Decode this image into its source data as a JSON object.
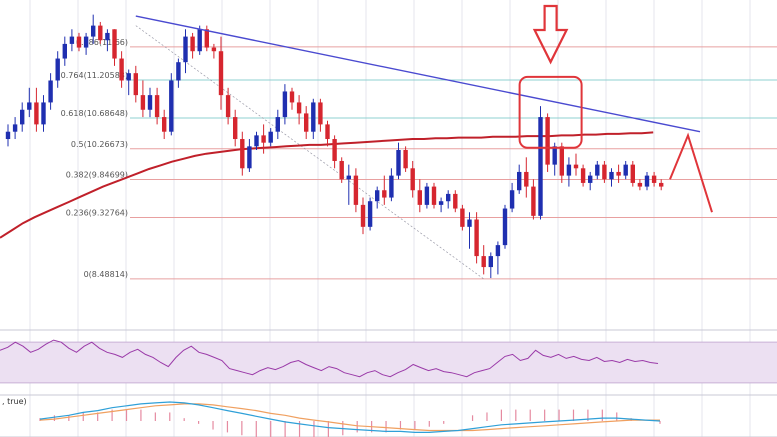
{
  "colors": {
    "bull": "#1f2fb0",
    "bear": "#d6262f",
    "fib_line": "#e8a0a0",
    "fib_line_teal": "#8fd0d0",
    "grid": "#e4e4ec",
    "trendline": "#4a4ad0",
    "ma": "#c0202a",
    "highlight": "#e0353a",
    "rsi": "#9a3aa8",
    "rsi_band": "#ece0f2",
    "macd": "#2fa0d8",
    "signal": "#f0a060",
    "hist": "#e58aa0"
  },
  "chart_data": {
    "type": "candlestick",
    "title": "",
    "ylim": [
      8.2,
      12.3
    ],
    "fib_levels": [
      {
        "label": "0.886(11.66)",
        "value": 11.66
      },
      {
        "label": "0.764(11.20583)",
        "value": 11.20583
      },
      {
        "label": "0.618(10.68648)",
        "value": 10.68648
      },
      {
        "label": "0.5(10.26673)",
        "value": 10.26673
      },
      {
        "label": "0.382(9.84699)",
        "value": 9.84699
      },
      {
        "label": "0.236(9.32764)",
        "value": 9.32764
      },
      {
        "label": "0(8.48814)",
        "value": 8.48814
      }
    ],
    "candles": [
      [
        10.4,
        10.6,
        10.3,
        10.5
      ],
      [
        10.5,
        10.7,
        10.4,
        10.6
      ],
      [
        10.6,
        10.9,
        10.5,
        10.8
      ],
      [
        10.8,
        11.1,
        10.7,
        10.9
      ],
      [
        10.9,
        11.1,
        10.5,
        10.6
      ],
      [
        10.6,
        11.0,
        10.5,
        10.9
      ],
      [
        10.9,
        11.3,
        10.8,
        11.2
      ],
      [
        11.2,
        11.6,
        11.1,
        11.5
      ],
      [
        11.5,
        11.8,
        11.4,
        11.7
      ],
      [
        11.7,
        11.9,
        11.6,
        11.8
      ],
      [
        11.8,
        11.85,
        11.6,
        11.65
      ],
      [
        11.65,
        11.85,
        11.55,
        11.8
      ],
      [
        11.8,
        12.1,
        11.7,
        11.95
      ],
      [
        11.95,
        12.0,
        11.7,
        11.75
      ],
      [
        11.75,
        11.9,
        11.6,
        11.85
      ],
      [
        11.9,
        11.9,
        11.4,
        11.5
      ],
      [
        11.5,
        11.6,
        11.1,
        11.2
      ],
      [
        11.2,
        11.35,
        11.0,
        11.3
      ],
      [
        11.3,
        11.4,
        10.9,
        11.0
      ],
      [
        11.0,
        11.2,
        10.7,
        10.8
      ],
      [
        10.8,
        11.1,
        10.7,
        11.0
      ],
      [
        11.0,
        11.1,
        10.6,
        10.7
      ],
      [
        10.7,
        10.8,
        10.4,
        10.5
      ],
      [
        10.5,
        11.3,
        10.45,
        11.2
      ],
      [
        11.2,
        11.5,
        11.1,
        11.45
      ],
      [
        11.45,
        11.9,
        11.3,
        11.8
      ],
      [
        11.8,
        11.85,
        11.5,
        11.6
      ],
      [
        11.6,
        11.95,
        11.55,
        11.9
      ],
      [
        11.9,
        11.95,
        11.6,
        11.65
      ],
      [
        11.65,
        11.7,
        11.5,
        11.6
      ],
      [
        11.6,
        11.8,
        10.8,
        11.0
      ],
      [
        11.0,
        11.1,
        10.6,
        10.7
      ],
      [
        10.7,
        10.8,
        10.3,
        10.4
      ],
      [
        10.4,
        10.5,
        9.9,
        10.0
      ],
      [
        10.0,
        10.4,
        9.95,
        10.3
      ],
      [
        10.3,
        10.5,
        10.25,
        10.45
      ],
      [
        10.45,
        10.6,
        10.2,
        10.35
      ],
      [
        10.35,
        10.55,
        10.3,
        10.5
      ],
      [
        10.5,
        10.8,
        10.4,
        10.7
      ],
      [
        10.7,
        11.15,
        10.6,
        11.05
      ],
      [
        11.05,
        11.1,
        10.8,
        10.9
      ],
      [
        10.9,
        11.0,
        10.6,
        10.75
      ],
      [
        10.75,
        10.85,
        10.4,
        10.5
      ],
      [
        10.5,
        10.95,
        10.4,
        10.9
      ],
      [
        10.9,
        10.95,
        10.5,
        10.6
      ],
      [
        10.6,
        10.65,
        10.3,
        10.4
      ],
      [
        10.4,
        10.45,
        10.0,
        10.1
      ],
      [
        10.1,
        10.15,
        9.8,
        9.85
      ],
      [
        9.85,
        10.05,
        9.5,
        9.9
      ],
      [
        9.9,
        10.0,
        9.4,
        9.5
      ],
      [
        9.5,
        9.6,
        9.1,
        9.2
      ],
      [
        9.2,
        9.6,
        9.15,
        9.55
      ],
      [
        9.55,
        9.75,
        9.45,
        9.7
      ],
      [
        9.7,
        9.9,
        9.5,
        9.6
      ],
      [
        9.6,
        10.0,
        9.55,
        9.9
      ],
      [
        9.9,
        10.35,
        9.85,
        10.25
      ],
      [
        10.25,
        10.3,
        9.95,
        10.0
      ],
      [
        10.0,
        10.1,
        9.6,
        9.7
      ],
      [
        9.7,
        9.85,
        9.4,
        9.5
      ],
      [
        9.5,
        9.8,
        9.45,
        9.75
      ],
      [
        9.75,
        9.8,
        9.45,
        9.5
      ],
      [
        9.5,
        9.6,
        9.4,
        9.55
      ],
      [
        9.55,
        9.7,
        9.45,
        9.65
      ],
      [
        9.65,
        9.7,
        9.4,
        9.45
      ],
      [
        9.45,
        9.5,
        9.15,
        9.2
      ],
      [
        9.2,
        9.4,
        8.9,
        9.3
      ],
      [
        9.3,
        9.4,
        8.7,
        8.8
      ],
      [
        8.8,
        8.95,
        8.55,
        8.65
      ],
      [
        8.65,
        8.85,
        8.5,
        8.8
      ],
      [
        8.8,
        9.0,
        8.55,
        8.95
      ],
      [
        8.95,
        9.5,
        8.9,
        9.45
      ],
      [
        9.45,
        9.8,
        9.4,
        9.7
      ],
      [
        9.7,
        10.05,
        9.65,
        9.95
      ],
      [
        9.95,
        10.15,
        9.6,
        9.75
      ],
      [
        9.75,
        9.85,
        9.3,
        9.35
      ],
      [
        9.35,
        10.85,
        9.3,
        10.7
      ],
      [
        10.7,
        10.75,
        9.95,
        10.05
      ],
      [
        10.05,
        10.35,
        9.9,
        10.3
      ],
      [
        10.3,
        10.35,
        9.8,
        9.9
      ],
      [
        9.9,
        10.15,
        9.75,
        10.05
      ],
      [
        10.05,
        10.2,
        9.9,
        10.0
      ],
      [
        10.0,
        10.05,
        9.75,
        9.8
      ],
      [
        9.8,
        9.95,
        9.7,
        9.9
      ],
      [
        9.9,
        10.1,
        9.85,
        10.05
      ],
      [
        10.05,
        10.1,
        9.8,
        9.85
      ],
      [
        9.85,
        10.0,
        9.75,
        9.95
      ],
      [
        9.95,
        10.05,
        9.8,
        9.9
      ],
      [
        9.9,
        10.1,
        9.85,
        10.05
      ],
      [
        10.05,
        10.1,
        9.75,
        9.8
      ],
      [
        9.8,
        9.85,
        9.7,
        9.75
      ],
      [
        9.75,
        9.95,
        9.7,
        9.9
      ],
      [
        9.9,
        9.95,
        9.75,
        9.8
      ],
      [
        9.8,
        9.85,
        9.7,
        9.75
      ]
    ],
    "ma": [
      9.05,
      9.15,
      9.25,
      9.33,
      9.4,
      9.47,
      9.54,
      9.61,
      9.68,
      9.75,
      9.81,
      9.87,
      9.93,
      9.99,
      10.04,
      10.09,
      10.13,
      10.17,
      10.2,
      10.22,
      10.24,
      10.26,
      10.27,
      10.28,
      10.29,
      10.3,
      10.31,
      10.32,
      10.32,
      10.33,
      10.34,
      10.35,
      10.36,
      10.37,
      10.38,
      10.39,
      10.4,
      10.4,
      10.41,
      10.41,
      10.42,
      10.42,
      10.42,
      10.43,
      10.43,
      10.43,
      10.44,
      10.44,
      10.44,
      10.45,
      10.45,
      10.46,
      10.46,
      10.47,
      10.47,
      10.48,
      10.48,
      10.49
    ],
    "projection": [
      [
        9.85,
        9.9
      ],
      [
        10.45,
        10.5
      ],
      [
        9.4,
        9.3
      ]
    ],
    "rsi": [
      62,
      65,
      70,
      66,
      60,
      63,
      68,
      72,
      70,
      64,
      60,
      66,
      70,
      64,
      60,
      58,
      55,
      60,
      63,
      58,
      55,
      50,
      46,
      55,
      62,
      66,
      60,
      58,
      55,
      52,
      44,
      42,
      40,
      38,
      42,
      45,
      43,
      46,
      50,
      52,
      48,
      45,
      42,
      46,
      44,
      40,
      38,
      36,
      40,
      42,
      38,
      36,
      40,
      43,
      48,
      45,
      42,
      44,
      41,
      40,
      38,
      36,
      40,
      42,
      44,
      50,
      56,
      58,
      52,
      54,
      62,
      57,
      55,
      58,
      54,
      56,
      53,
      52,
      55,
      51,
      52,
      50,
      53,
      51,
      52,
      50,
      49
    ],
    "macd": [
      0.02,
      0.04,
      0.06,
      0.09,
      0.11,
      0.14,
      0.16,
      0.18,
      0.19,
      0.2,
      0.19,
      0.17,
      0.14,
      0.11,
      0.08,
      0.05,
      0.02,
      -0.01,
      -0.03,
      -0.05,
      -0.07,
      -0.08,
      -0.09,
      -0.1,
      -0.11,
      -0.11,
      -0.12,
      -0.12,
      -0.11,
      -0.1,
      -0.08,
      -0.06,
      -0.04,
      -0.03,
      -0.02,
      -0.01,
      0.0,
      0.01,
      0.02,
      0.03,
      0.03,
      0.02,
      0.01,
      0.0
    ],
    "signal": [
      0.01,
      0.02,
      0.04,
      0.06,
      0.08,
      0.1,
      0.12,
      0.14,
      0.16,
      0.17,
      0.18,
      0.18,
      0.17,
      0.15,
      0.13,
      0.11,
      0.08,
      0.06,
      0.03,
      0.01,
      -0.01,
      -0.03,
      -0.05,
      -0.06,
      -0.07,
      -0.08,
      -0.09,
      -0.1,
      -0.1,
      -0.1,
      -0.1,
      -0.09,
      -0.08,
      -0.07,
      -0.06,
      -0.05,
      -0.04,
      -0.03,
      -0.02,
      -0.01,
      0.0,
      0.01,
      0.01,
      0.01
    ],
    "indicator_label": ", true)"
  }
}
